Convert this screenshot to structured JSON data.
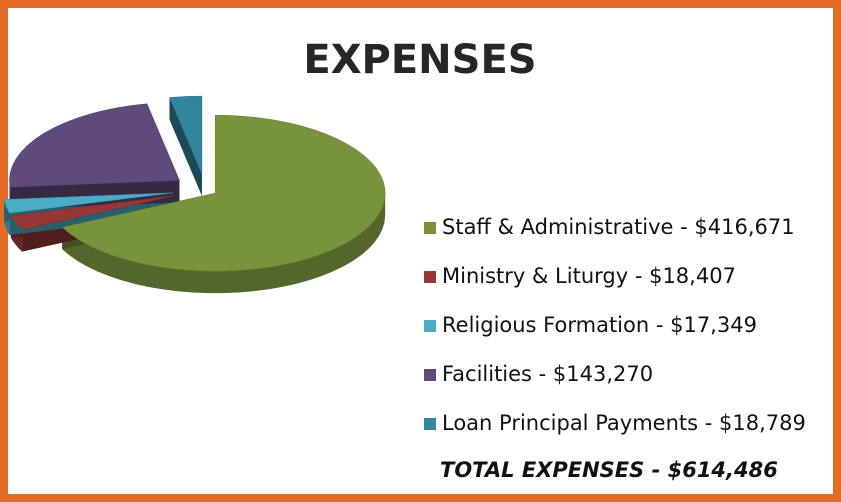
{
  "chart_data": {
    "type": "pie",
    "title": "EXPENSES",
    "categories": [
      "Staff & Administrative - $416,671",
      "Ministry & Liturgy - $18,407",
      "Religious Formation - $17,349",
      "Facilities - $143,270",
      "Loan Principal Payments - $18,789"
    ],
    "values": [
      416671,
      18407,
      17349,
      143270,
      18789
    ],
    "colors": [
      "#77933c",
      "#953735",
      "#4bacc6",
      "#604a7b",
      "#31859c"
    ],
    "annotation": "TOTAL EXPENSES - $614,486"
  }
}
